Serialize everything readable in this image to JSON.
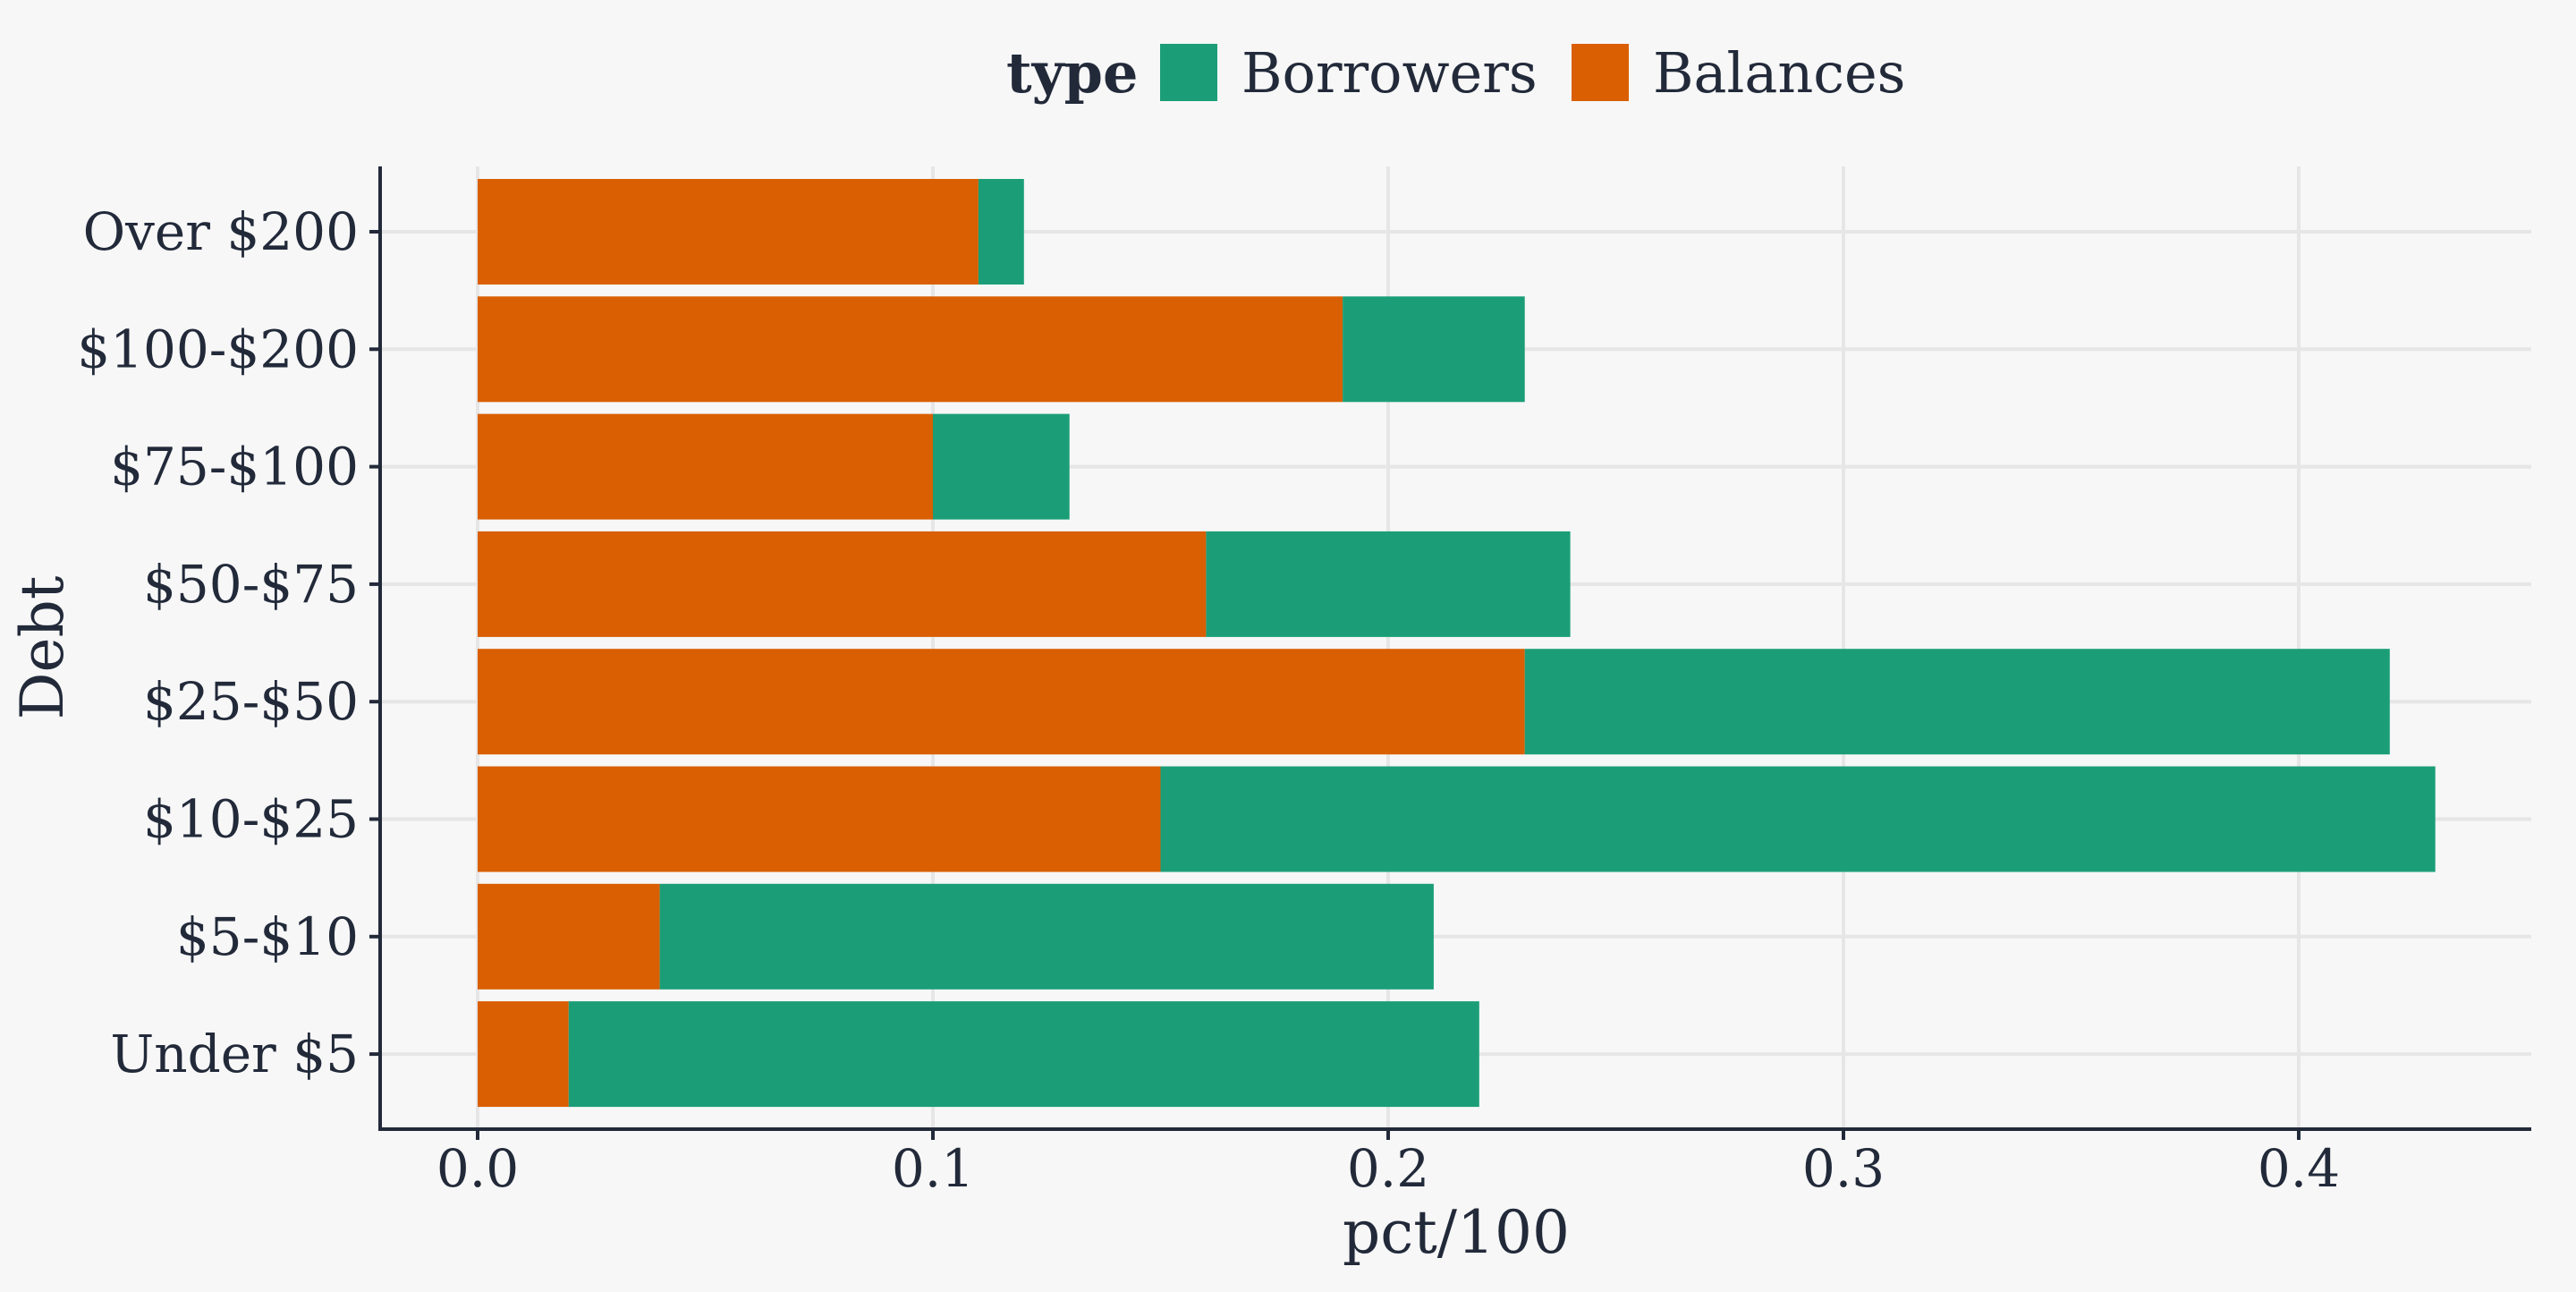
{
  "chart_data": {
    "type": "bar",
    "orientation": "horizontal",
    "stacked": true,
    "categories": [
      "Under $5",
      "$5-$10",
      "$10-$25",
      "$25-$50",
      "$50-$75",
      "$75-$100",
      "$100-$200",
      "Over $200"
    ],
    "series": [
      {
        "name": "Borrowers",
        "color": "#1b9e77",
        "values": [
          0.2,
          0.17,
          0.28,
          0.19,
          0.08,
          0.03,
          0.04,
          0.01
        ]
      },
      {
        "name": "Balances",
        "color": "#d95f02",
        "values": [
          0.02,
          0.04,
          0.15,
          0.23,
          0.16,
          0.1,
          0.19,
          0.11
        ]
      }
    ],
    "stack_order_from_axis": [
      "Balances",
      "Borrowers"
    ],
    "xlabel": "pct/100",
    "ylabel": "Debt",
    "xlim": [
      -0.0215,
      0.4515
    ],
    "xticks": [
      0.0,
      0.1,
      0.2,
      0.3,
      0.4
    ],
    "xtick_labels": [
      "0.0",
      "0.1",
      "0.2",
      "0.3",
      "0.4"
    ],
    "grid": true,
    "legend": {
      "title": "type",
      "position": "top",
      "entries": [
        "Borrowers",
        "Balances"
      ]
    }
  }
}
